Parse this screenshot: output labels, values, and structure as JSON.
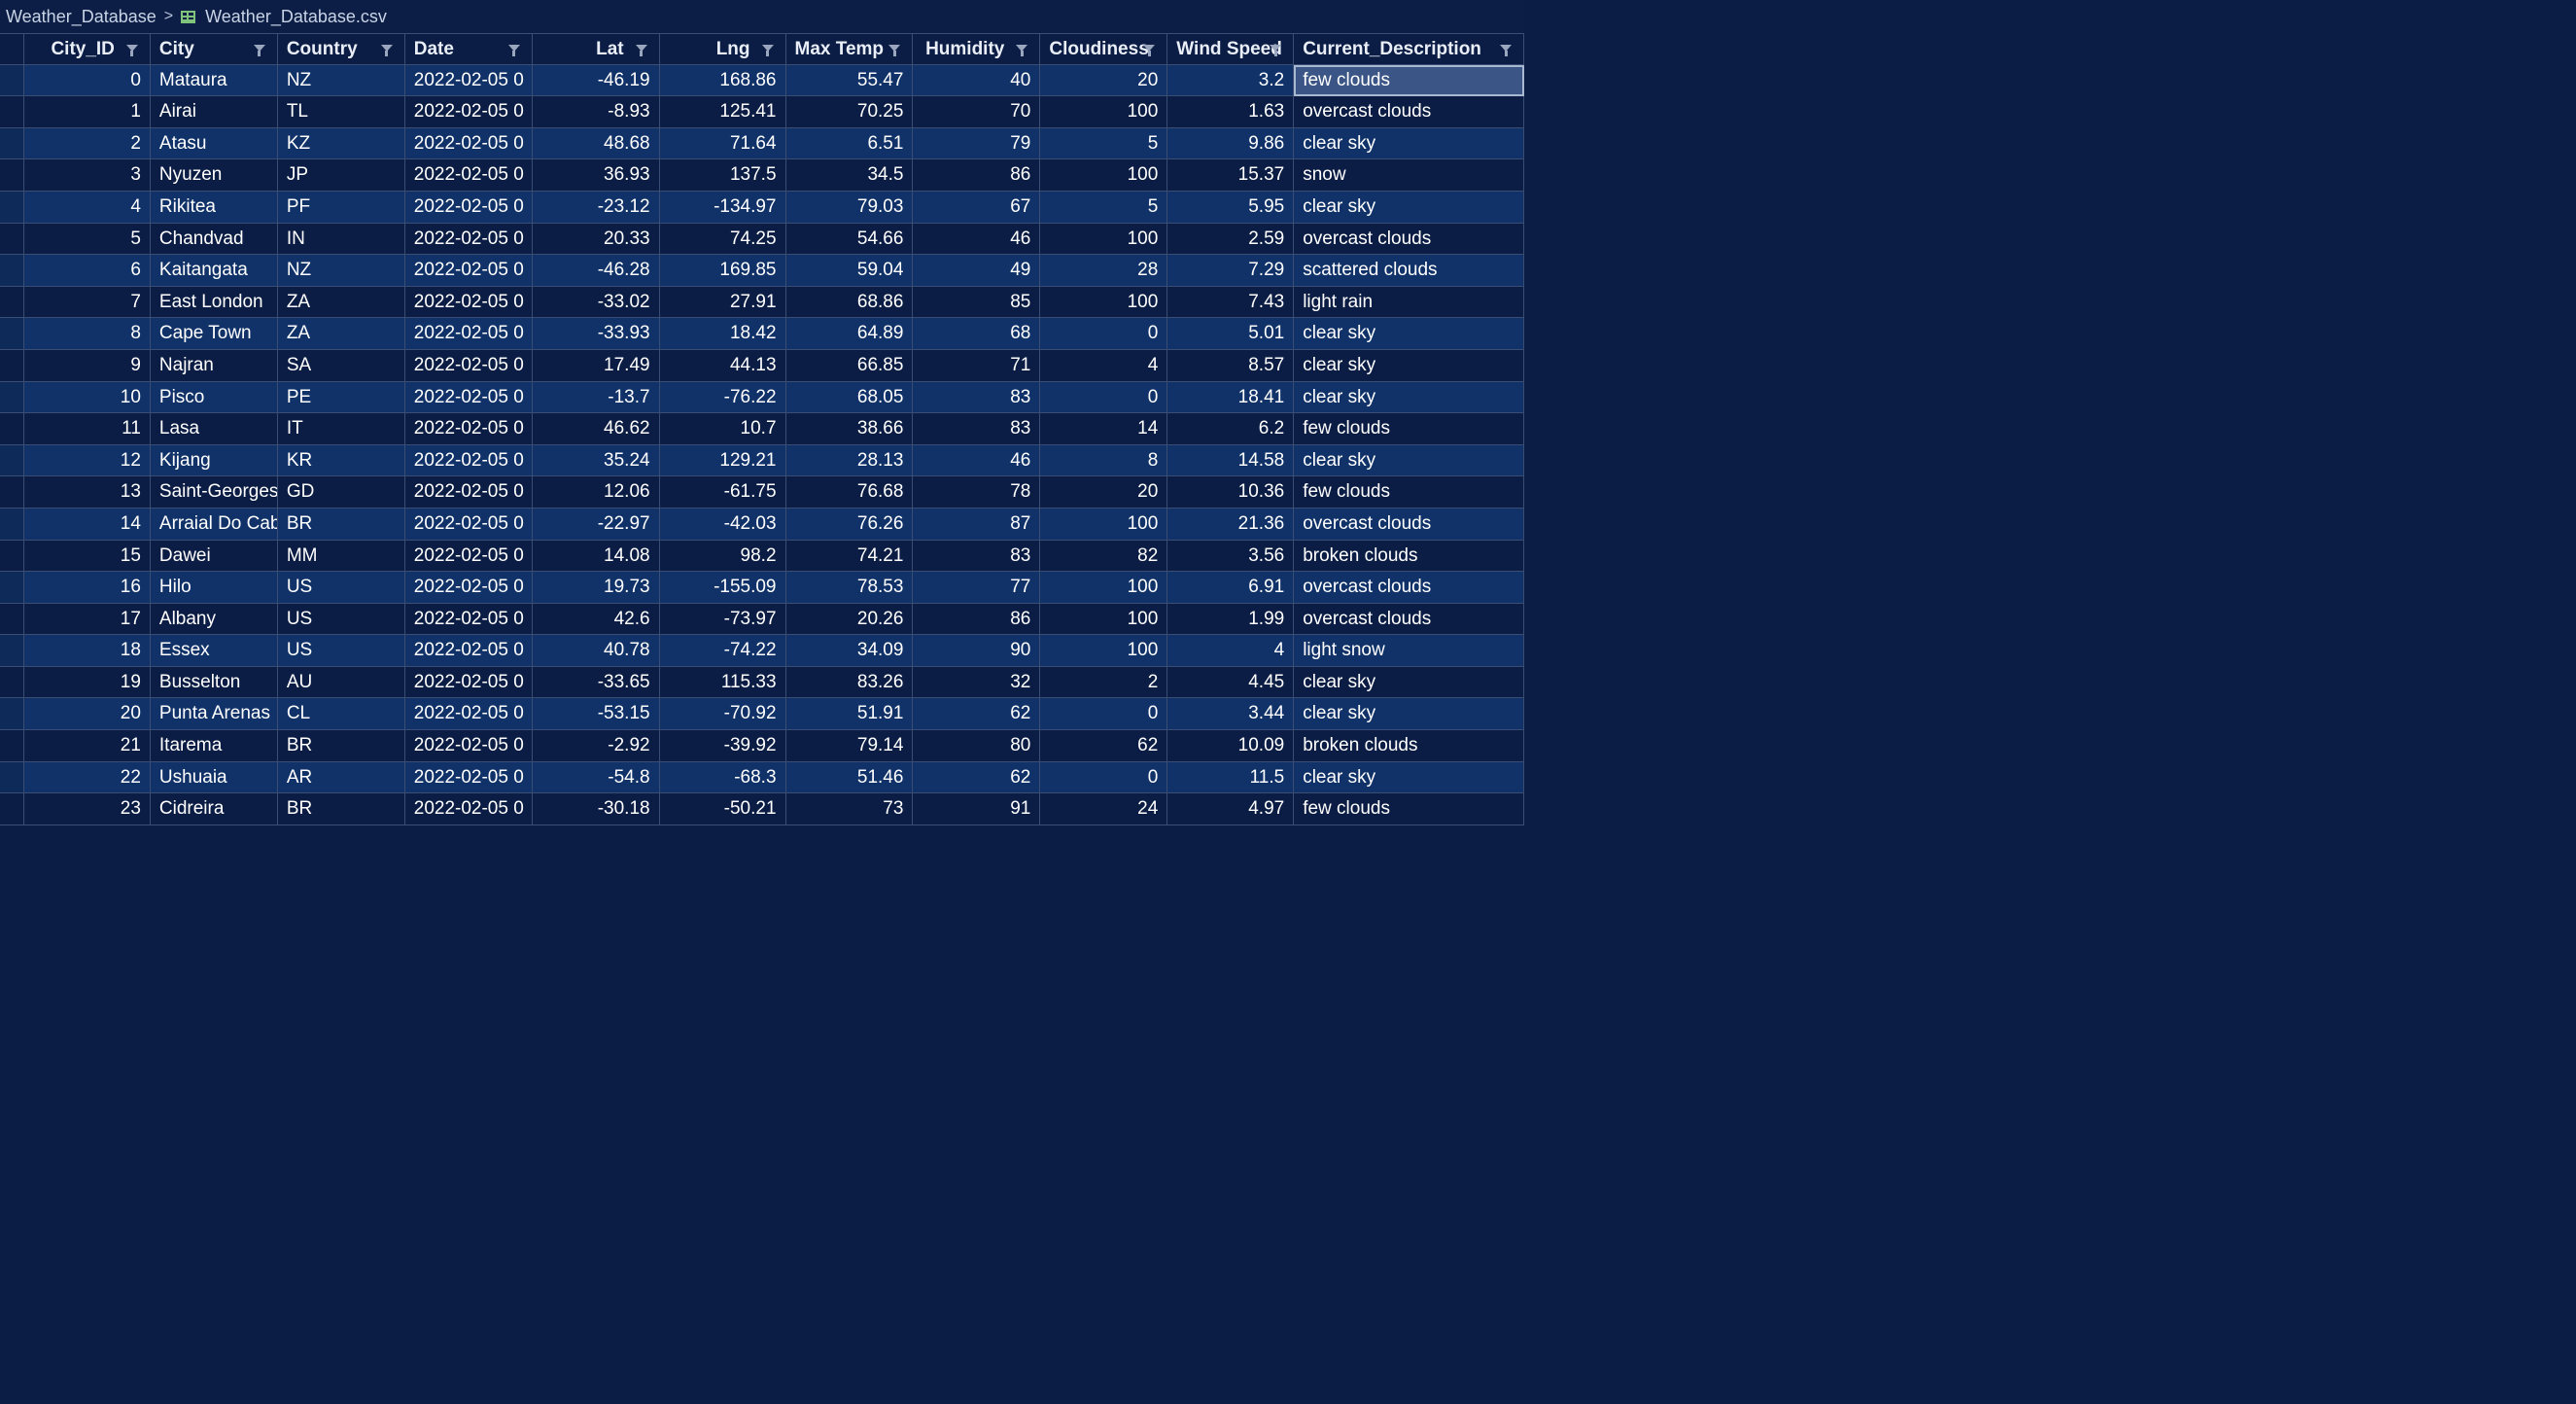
{
  "breadcrumb": {
    "folder": "Weather_Database",
    "file": "Weather_Database.csv"
  },
  "columns": [
    "City_ID",
    "City",
    "Country",
    "Date",
    "Lat",
    "Lng",
    "Max Temp",
    "Humidity",
    "Cloudiness",
    "Wind Speed",
    "Current_Description"
  ],
  "rows": [
    [
      "0",
      "Mataura",
      "NZ",
      "2022-02-05 0",
      "-46.19",
      "168.86",
      "55.47",
      "40",
      "20",
      "3.2",
      "few clouds"
    ],
    [
      "1",
      "Airai",
      "TL",
      "2022-02-05 0",
      "-8.93",
      "125.41",
      "70.25",
      "70",
      "100",
      "1.63",
      "overcast clouds"
    ],
    [
      "2",
      "Atasu",
      "KZ",
      "2022-02-05 0",
      "48.68",
      "71.64",
      "6.51",
      "79",
      "5",
      "9.86",
      "clear sky"
    ],
    [
      "3",
      "Nyuzen",
      "JP",
      "2022-02-05 0",
      "36.93",
      "137.5",
      "34.5",
      "86",
      "100",
      "15.37",
      "snow"
    ],
    [
      "4",
      "Rikitea",
      "PF",
      "2022-02-05 0",
      "-23.12",
      "-134.97",
      "79.03",
      "67",
      "5",
      "5.95",
      "clear sky"
    ],
    [
      "5",
      "Chandvad",
      "IN",
      "2022-02-05 0",
      "20.33",
      "74.25",
      "54.66",
      "46",
      "100",
      "2.59",
      "overcast clouds"
    ],
    [
      "6",
      "Kaitangata",
      "NZ",
      "2022-02-05 0",
      "-46.28",
      "169.85",
      "59.04",
      "49",
      "28",
      "7.29",
      "scattered clouds"
    ],
    [
      "7",
      "East London",
      "ZA",
      "2022-02-05 0",
      "-33.02",
      "27.91",
      "68.86",
      "85",
      "100",
      "7.43",
      "light rain"
    ],
    [
      "8",
      "Cape Town",
      "ZA",
      "2022-02-05 0",
      "-33.93",
      "18.42",
      "64.89",
      "68",
      "0",
      "5.01",
      "clear sky"
    ],
    [
      "9",
      "Najran",
      "SA",
      "2022-02-05 0",
      "17.49",
      "44.13",
      "66.85",
      "71",
      "4",
      "8.57",
      "clear sky"
    ],
    [
      "10",
      "Pisco",
      "PE",
      "2022-02-05 0",
      "-13.7",
      "-76.22",
      "68.05",
      "83",
      "0",
      "18.41",
      "clear sky"
    ],
    [
      "11",
      "Lasa",
      "IT",
      "2022-02-05 0",
      "46.62",
      "10.7",
      "38.66",
      "83",
      "14",
      "6.2",
      "few clouds"
    ],
    [
      "12",
      "Kijang",
      "KR",
      "2022-02-05 0",
      "35.24",
      "129.21",
      "28.13",
      "46",
      "8",
      "14.58",
      "clear sky"
    ],
    [
      "13",
      "Saint-Georges",
      "GD",
      "2022-02-05 0",
      "12.06",
      "-61.75",
      "76.68",
      "78",
      "20",
      "10.36",
      "few clouds"
    ],
    [
      "14",
      "Arraial Do Cab",
      "BR",
      "2022-02-05 0",
      "-22.97",
      "-42.03",
      "76.26",
      "87",
      "100",
      "21.36",
      "overcast clouds"
    ],
    [
      "15",
      "Dawei",
      "MM",
      "2022-02-05 0",
      "14.08",
      "98.2",
      "74.21",
      "83",
      "82",
      "3.56",
      "broken clouds"
    ],
    [
      "16",
      "Hilo",
      "US",
      "2022-02-05 0",
      "19.73",
      "-155.09",
      "78.53",
      "77",
      "100",
      "6.91",
      "overcast clouds"
    ],
    [
      "17",
      "Albany",
      "US",
      "2022-02-05 0",
      "42.6",
      "-73.97",
      "20.26",
      "86",
      "100",
      "1.99",
      "overcast clouds"
    ],
    [
      "18",
      "Essex",
      "US",
      "2022-02-05 0",
      "40.78",
      "-74.22",
      "34.09",
      "90",
      "100",
      "4",
      "light snow"
    ],
    [
      "19",
      "Busselton",
      "AU",
      "2022-02-05 0",
      "-33.65",
      "115.33",
      "83.26",
      "32",
      "2",
      "4.45",
      "clear sky"
    ],
    [
      "20",
      "Punta Arenas",
      "CL",
      "2022-02-05 0",
      "-53.15",
      "-70.92",
      "51.91",
      "62",
      "0",
      "3.44",
      "clear sky"
    ],
    [
      "21",
      "Itarema",
      "BR",
      "2022-02-05 0",
      "-2.92",
      "-39.92",
      "79.14",
      "80",
      "62",
      "10.09",
      "broken clouds"
    ],
    [
      "22",
      "Ushuaia",
      "AR",
      "2022-02-05 0",
      "-54.8",
      "-68.3",
      "51.46",
      "62",
      "0",
      "11.5",
      "clear sky"
    ],
    [
      "23",
      "Cidreira",
      "BR",
      "2022-02-05 0",
      "-30.18",
      "-50.21",
      "73",
      "91",
      "24",
      "4.97",
      "few clouds"
    ]
  ]
}
